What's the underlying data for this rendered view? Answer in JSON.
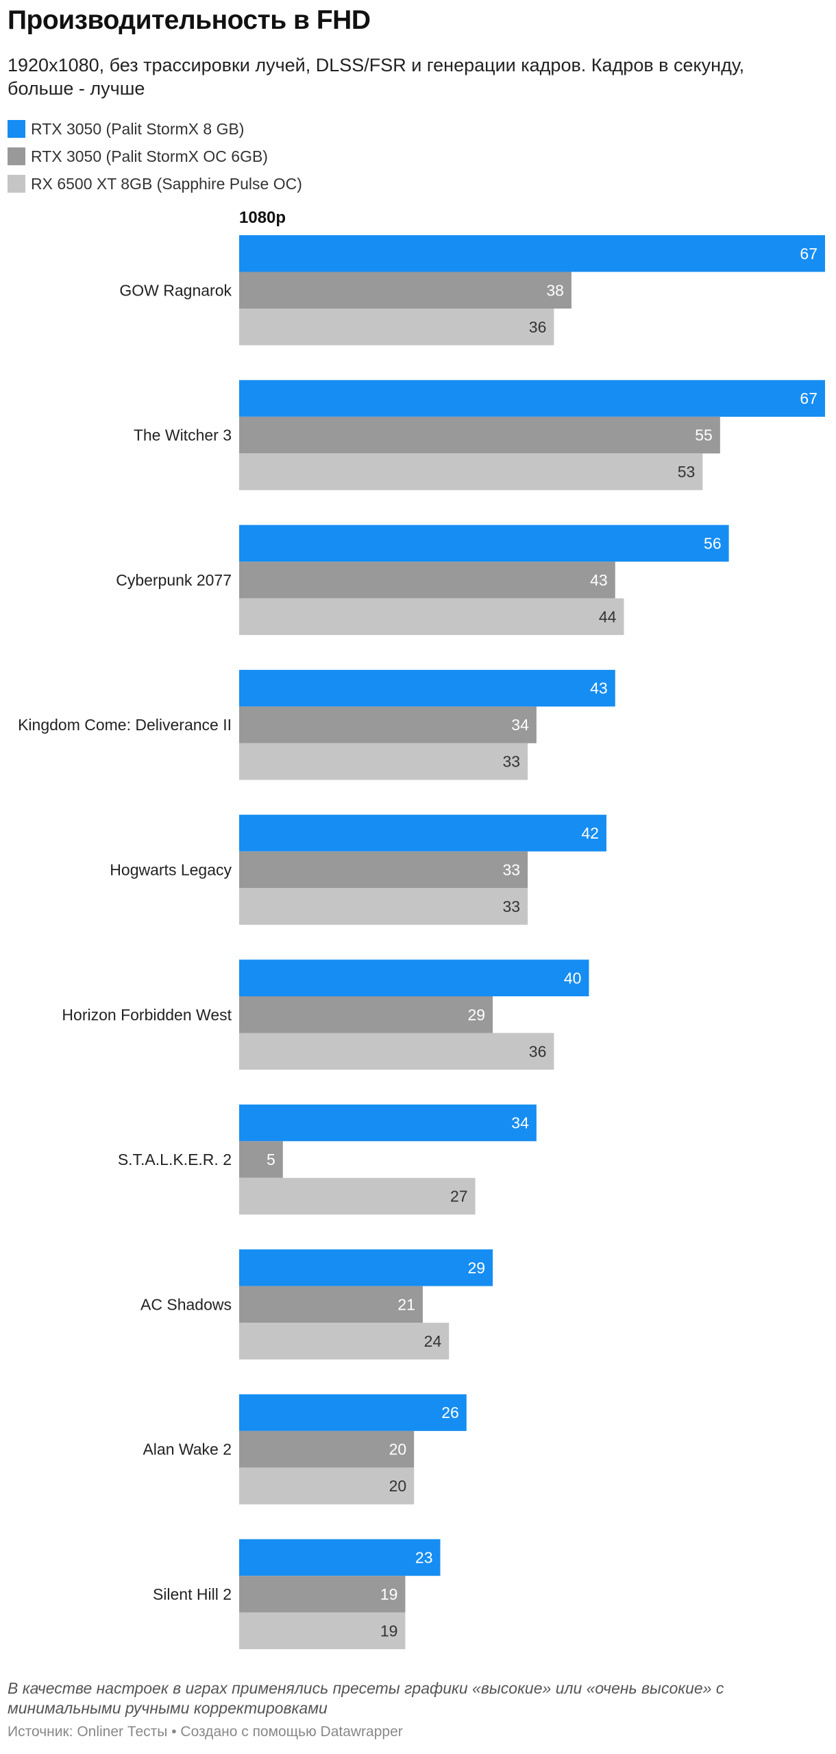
{
  "title": "Производительность в FHD",
  "subtitle": "1920x1080, без трассировки лучей, DLSS/FSR и генерации кадров. Кадров в секунду, больше - лучше",
  "legend": [
    {
      "label": "RTX 3050 (Palit StormX 8 GB)",
      "color": "#168df2"
    },
    {
      "label": "RTX 3050 (Palit StormX OC 6GB)",
      "color": "#999999"
    },
    {
      "label": "RX 6500 XT 8GB (Sapphire Pulse OC)",
      "color": "#c5c5c5"
    }
  ],
  "panel_label": "1080p",
  "note": "В качестве настроек в играх применялись пресеты графики «высокие» или «очень высокие» с минимальными ручными корректировками",
  "source": "Источник: Onliner Тесты • Создано с помощью Datawrapper",
  "chart_data": {
    "type": "bar",
    "orientation": "horizontal",
    "title": "Производительность в FHD",
    "xlabel": "",
    "ylabel": "",
    "xlim": [
      0,
      67
    ],
    "grid": false,
    "categories": [
      "GOW Ragnarok",
      "The Witcher 3",
      "Cyberpunk 2077",
      "Kingdom Come: Deliverance II",
      "Hogwarts Legacy",
      "Horizon Forbidden West",
      "S.T.A.L.K.E.R. 2",
      "AC Shadows",
      "Alan Wake 2",
      "Silent Hill 2"
    ],
    "series": [
      {
        "name": "RTX 3050 (Palit StormX 8 GB)",
        "color": "#168df2",
        "label_color": "#ffffff",
        "values": [
          67,
          67,
          56,
          43,
          42,
          40,
          34,
          29,
          26,
          23
        ]
      },
      {
        "name": "RTX 3050 (Palit StormX OC 6GB)",
        "color": "#999999",
        "label_color": "#ffffff",
        "values": [
          38,
          55,
          43,
          34,
          33,
          29,
          5,
          21,
          20,
          19
        ]
      },
      {
        "name": "RX 6500 XT 8GB (Sapphire Pulse OC)",
        "color": "#c5c5c5",
        "label_color": "#333333",
        "values": [
          36,
          53,
          44,
          33,
          33,
          36,
          27,
          24,
          20,
          19
        ]
      }
    ]
  }
}
